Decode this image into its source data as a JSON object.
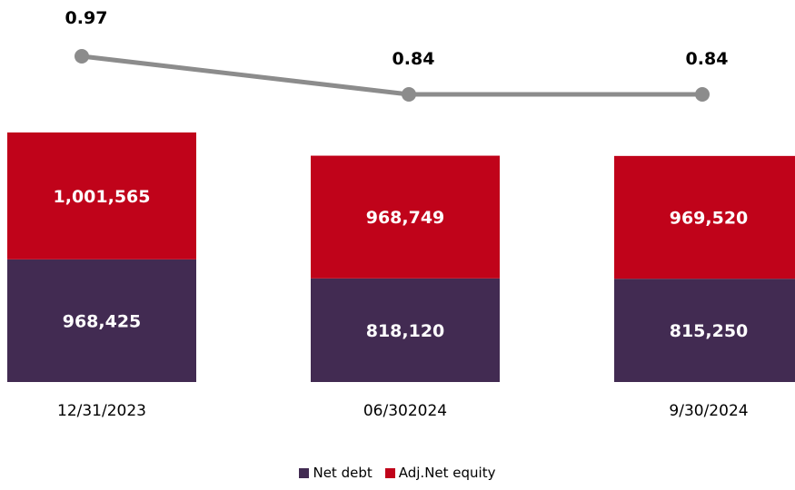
{
  "chart_data": {
    "type": "bar",
    "stacked": true,
    "categories": [
      "12/31/2023",
      "06/302024",
      "9/30/2024"
    ],
    "series": [
      {
        "name": "Net debt",
        "values": [
          968425,
          818120,
          815250
        ],
        "labels": [
          "968,425",
          "818,120",
          "815,250"
        ],
        "color": "#422B52"
      },
      {
        "name": "Adj.Net equity",
        "values": [
          1001565,
          968749,
          969520
        ],
        "labels": [
          "1,001,565",
          "968,749",
          "969,520"
        ],
        "color": "#C0031A"
      }
    ],
    "line": {
      "values": [
        0.97,
        0.84,
        0.84
      ],
      "labels": [
        "0.97",
        "0.84",
        "0.84"
      ],
      "color": "#8C8C8C"
    },
    "legend_position": "bottom-center",
    "grid": false
  }
}
